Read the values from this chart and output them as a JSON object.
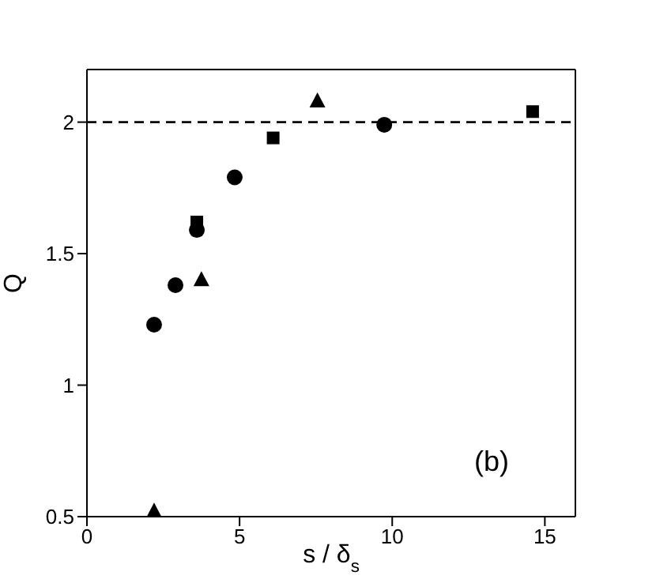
{
  "chart_data": {
    "type": "scatter",
    "xlabel": "s / δ$_{s}$",
    "ylabel": "Q",
    "xlim": [
      0,
      16
    ],
    "ylim": [
      0.5,
      2.2
    ],
    "xticks": [
      0,
      5,
      10,
      15
    ],
    "yticks": [
      0.5,
      1,
      1.5,
      2
    ],
    "series": [
      {
        "color": "#000000",
        "marker": "circle",
        "x": [
          2.2,
          2.9,
          3.6,
          4.84,
          9.74
        ],
        "values": [
          1.23,
          1.38,
          1.59,
          1.79,
          1.99
        ]
      },
      {
        "color": "#000000",
        "marker": "square",
        "x": [
          3.6,
          6.1,
          14.6
        ],
        "values": [
          1.62,
          1.94,
          2.04
        ]
      },
      {
        "color": "#000000",
        "marker": "triangle",
        "x": [
          2.2,
          3.75,
          7.55
        ],
        "values": [
          0.52,
          1.4,
          2.08
        ]
      }
    ],
    "ref_lines": [
      {
        "axis": "y",
        "value": 2,
        "color": "#000000",
        "line_style": "dashed"
      }
    ],
    "annotations": [
      {
        "text": "(b)"
      }
    ]
  }
}
